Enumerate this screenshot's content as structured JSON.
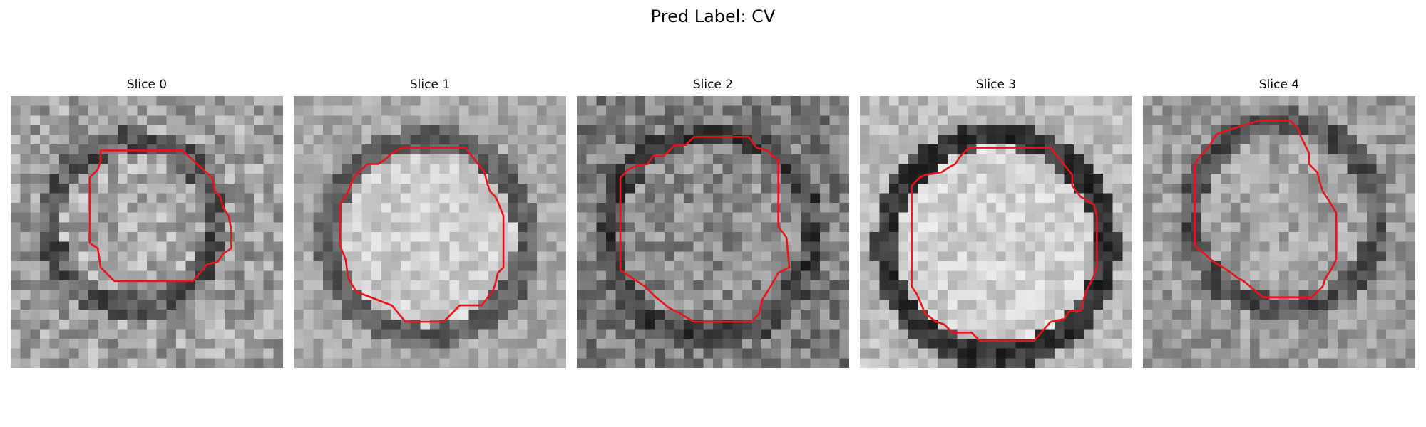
{
  "figure": {
    "title": "Pred Label: CV",
    "contour_color": "#e8141a"
  },
  "slices": [
    {
      "title": "Slice 0"
    },
    {
      "title": "Slice 1"
    },
    {
      "title": "Slice 2"
    },
    {
      "title": "Slice 3"
    },
    {
      "title": "Slice 4"
    }
  ]
}
